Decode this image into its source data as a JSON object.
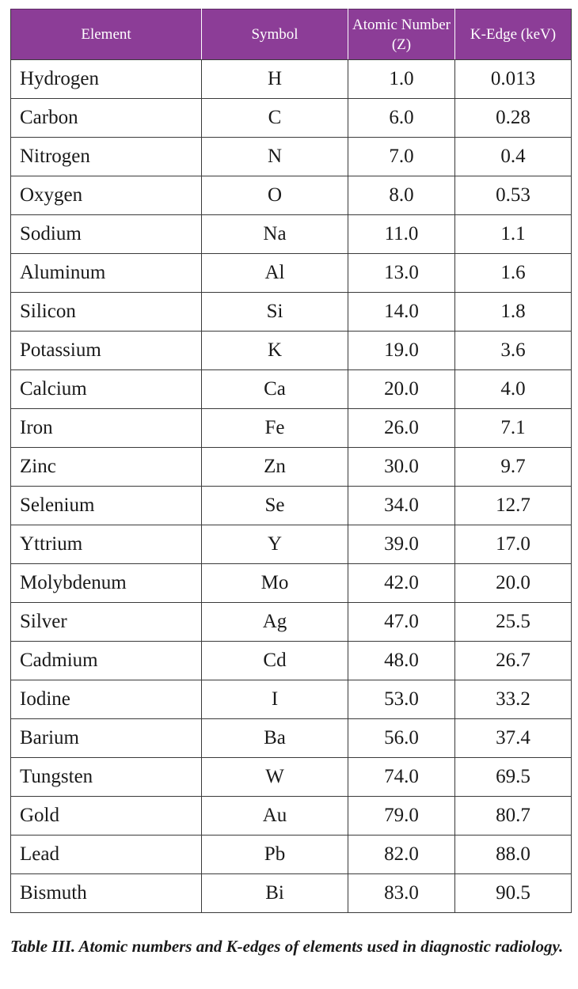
{
  "table": {
    "headers": {
      "element": "Element",
      "symbol": "Symbol",
      "atomic_number": "Atomic Number (Z)",
      "k_edge": "K-Edge (keV)"
    },
    "rows": [
      {
        "element": "Hydrogen",
        "symbol": "H",
        "z": "1.0",
        "k_edge": "0.013"
      },
      {
        "element": "Carbon",
        "symbol": "C",
        "z": "6.0",
        "k_edge": "0.28"
      },
      {
        "element": "Nitrogen",
        "symbol": "N",
        "z": "7.0",
        "k_edge": "0.4"
      },
      {
        "element": "Oxygen",
        "symbol": "O",
        "z": "8.0",
        "k_edge": "0.53"
      },
      {
        "element": "Sodium",
        "symbol": "Na",
        "z": "11.0",
        "k_edge": "1.1"
      },
      {
        "element": "Aluminum",
        "symbol": "Al",
        "z": "13.0",
        "k_edge": "1.6"
      },
      {
        "element": "Silicon",
        "symbol": "Si",
        "z": "14.0",
        "k_edge": "1.8"
      },
      {
        "element": "Potassium",
        "symbol": "K",
        "z": "19.0",
        "k_edge": "3.6"
      },
      {
        "element": "Calcium",
        "symbol": "Ca",
        "z": "20.0",
        "k_edge": "4.0"
      },
      {
        "element": "Iron",
        "symbol": "Fe",
        "z": "26.0",
        "k_edge": "7.1"
      },
      {
        "element": "Zinc",
        "symbol": "Zn",
        "z": "30.0",
        "k_edge": "9.7"
      },
      {
        "element": "Selenium",
        "symbol": "Se",
        "z": "34.0",
        "k_edge": "12.7"
      },
      {
        "element": "Yttrium",
        "symbol": "Y",
        "z": "39.0",
        "k_edge": "17.0"
      },
      {
        "element": "Molybdenum",
        "symbol": "Mo",
        "z": "42.0",
        "k_edge": "20.0"
      },
      {
        "element": "Silver",
        "symbol": "Ag",
        "z": "47.0",
        "k_edge": "25.5"
      },
      {
        "element": "Cadmium",
        "symbol": "Cd",
        "z": "48.0",
        "k_edge": "26.7"
      },
      {
        "element": "Iodine",
        "symbol": "I",
        "z": "53.0",
        "k_edge": "33.2"
      },
      {
        "element": "Barium",
        "symbol": "Ba",
        "z": "56.0",
        "k_edge": "37.4"
      },
      {
        "element": "Tungsten",
        "symbol": "W",
        "z": "74.0",
        "k_edge": "69.5"
      },
      {
        "element": "Gold",
        "symbol": "Au",
        "z": "79.0",
        "k_edge": "80.7"
      },
      {
        "element": "Lead",
        "symbol": "Pb",
        "z": "82.0",
        "k_edge": "88.0"
      },
      {
        "element": "Bismuth",
        "symbol": "Bi",
        "z": "83.0",
        "k_edge": "90.5"
      }
    ]
  },
  "caption": "Table III. Atomic numbers and K-edges of elements used in diagnostic radiology.",
  "colors": {
    "header_background": "#8c3d97",
    "header_text": "#ffffff",
    "border": "#3a3a3a"
  }
}
